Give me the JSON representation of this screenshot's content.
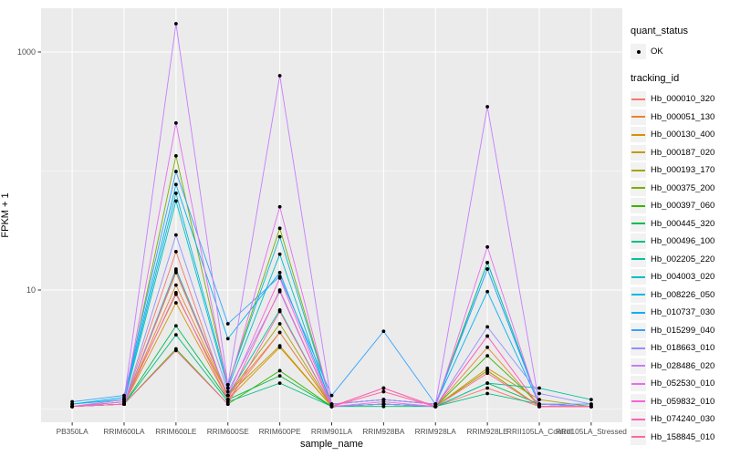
{
  "chart_data": {
    "type": "line",
    "title": "",
    "xlabel": "sample_name",
    "ylabel": "FPKM + 1",
    "y_scale": "log10",
    "y_ticks": [
      {
        "value": 1000,
        "label": "1000"
      },
      {
        "value": 10,
        "label": "10"
      }
    ],
    "y_minor_gridlines": [
      1,
      100
    ],
    "ylim_log10": [
      -0.11,
      3.37
    ],
    "grid": true,
    "panel_background": "#EBEBEB",
    "gridline_color": "#FFFFFF",
    "point_color": "#000000",
    "axis_text_color": "#4D4D4D",
    "legend_position": "right",
    "categories": [
      "PB350LA",
      "RRIM600LA",
      "RRIM600LE",
      "RRIM600SE",
      "RRIM600PE",
      "RRIM901LA",
      "RRIM928BA",
      "RRIM928LA",
      "RRIM928LE",
      "RRII105LA_Control",
      "RRII105LA_Stressed"
    ],
    "series": [
      {
        "name": "Hb_000010_320",
        "color": "#F8766D",
        "values": [
          1.05,
          1.1,
          21,
          1.2,
          4.4,
          1.05,
          1.5,
          1.05,
          1.5,
          1.05,
          1.05
        ]
      },
      {
        "name": "Hb_000051_130",
        "color": "#EA8331",
        "values": [
          1.05,
          1.1,
          11,
          1.3,
          4.4,
          1.05,
          1.1,
          1.05,
          3.3,
          1.05,
          1.05
        ]
      },
      {
        "name": "Hb_000130_400",
        "color": "#D89000",
        "values": [
          1.05,
          1.1,
          7.8,
          1.2,
          3.3,
          1.05,
          1.1,
          1.05,
          2.1,
          1.05,
          1.05
        ]
      },
      {
        "name": "Hb_000187_020",
        "color": "#C09B00",
        "values": [
          1.05,
          1.15,
          9.2,
          1.3,
          3.4,
          1.05,
          1.1,
          1.05,
          2.2,
          1.2,
          1.05
        ]
      },
      {
        "name": "Hb_000193_170",
        "color": "#A3A500",
        "values": [
          1.05,
          1.1,
          14,
          1.3,
          5.2,
          1.05,
          1.1,
          1.05,
          2.1,
          1.05,
          1.05
        ]
      },
      {
        "name": "Hb_000375_200",
        "color": "#7CAE00",
        "values": [
          1.05,
          1.2,
          134,
          1.6,
          33,
          1.1,
          1.2,
          1.1,
          17,
          1.1,
          1.05
        ]
      },
      {
        "name": "Hb_000397_060",
        "color": "#39B600",
        "values": [
          1.05,
          1.1,
          3.2,
          1.1,
          2.1,
          1.05,
          1.1,
          1.05,
          2.8,
          1.1,
          1.05
        ]
      },
      {
        "name": "Hb_000445_320",
        "color": "#00BB4E",
        "values": [
          1.05,
          1.1,
          5.0,
          1.2,
          1.9,
          1.05,
          1.1,
          1.05,
          1.65,
          1.1,
          1.05
        ]
      },
      {
        "name": "Hb_000496_100",
        "color": "#00BF7D",
        "values": [
          1.05,
          1.1,
          4.2,
          1.15,
          1.65,
          1.05,
          1.05,
          1.05,
          1.35,
          1.1,
          1.05
        ]
      },
      {
        "name": "Hb_002205_220",
        "color": "#00C1A3",
        "values": [
          1.05,
          1.1,
          15,
          1.3,
          6.8,
          1.05,
          1.1,
          1.05,
          1.65,
          1.5,
          1.2
        ]
      },
      {
        "name": "Hb_004003_020",
        "color": "#00BFC4",
        "values": [
          1.05,
          1.15,
          56,
          1.5,
          20,
          1.05,
          1.1,
          1.05,
          17,
          1.1,
          1.05
        ]
      },
      {
        "name": "Hb_008226_050",
        "color": "#00BAE0",
        "values": [
          1.1,
          1.2,
          65,
          1.6,
          28,
          1.1,
          1.2,
          1.1,
          15,
          1.1,
          1.05
        ]
      },
      {
        "name": "Hb_010737_030",
        "color": "#00B0F6",
        "values": [
          1.1,
          1.25,
          77,
          3.9,
          14,
          1.1,
          1.2,
          1.1,
          9.7,
          1.1,
          1.05
        ]
      },
      {
        "name": "Hb_015299_040",
        "color": "#35A2FF",
        "values": [
          1.15,
          1.3,
          99,
          5.2,
          13,
          1.3,
          4.5,
          1.1,
          15,
          1.1,
          1.1
        ]
      },
      {
        "name": "Hb_018663_010",
        "color": "#9590FF",
        "values": [
          1.05,
          1.1,
          29,
          1.4,
          9.7,
          1.05,
          1.1,
          1.05,
          4.9,
          1.35,
          1.1
        ]
      },
      {
        "name": "Hb_028486_020",
        "color": "#C77CFF",
        "values": [
          1.05,
          1.2,
          1728,
          1.6,
          632,
          1.1,
          1.2,
          1.1,
          347,
          1.1,
          1.05
        ]
      },
      {
        "name": "Hb_052530_010",
        "color": "#E76BF3",
        "values": [
          1.05,
          1.15,
          253,
          1.5,
          50,
          1.05,
          1.15,
          1.05,
          23,
          1.05,
          1.05
        ]
      },
      {
        "name": "Hb_059832_010",
        "color": "#FA62DB",
        "values": [
          1.05,
          1.1,
          14.5,
          1.3,
          12.6,
          1.05,
          1.4,
          1.05,
          4.1,
          1.05,
          1.05
        ]
      },
      {
        "name": "Hb_074240_030",
        "color": "#FF62BC",
        "values": [
          1.05,
          1.1,
          9.5,
          1.2,
          10,
          1.05,
          1.5,
          1.05,
          4.1,
          1.05,
          1.05
        ]
      },
      {
        "name": "Hb_158845_010",
        "color": "#FF6A98",
        "values": [
          1.05,
          1.1,
          3.1,
          1.1,
          6.6,
          1.05,
          1.4,
          1.05,
          2.0,
          1.05,
          1.05
        ]
      }
    ]
  },
  "legend": {
    "quant_status": {
      "title": "quant_status",
      "items": [
        {
          "label": "OK",
          "marker": "point",
          "color": "#000000"
        }
      ]
    },
    "tracking_id": {
      "title": "tracking_id"
    }
  }
}
